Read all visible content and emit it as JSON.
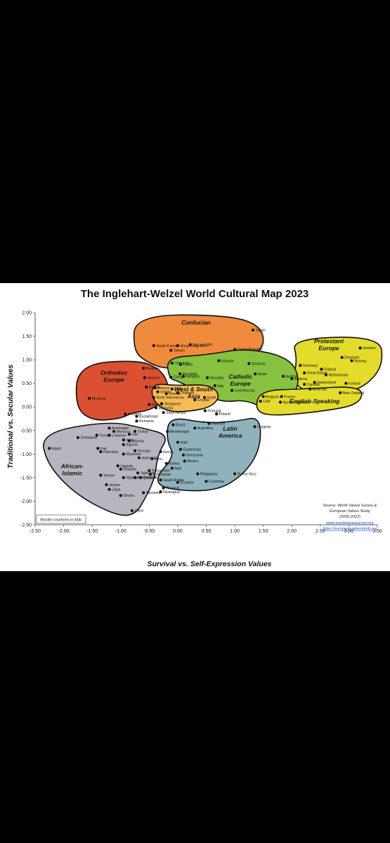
{
  "chart_data": {
    "type": "scatter",
    "title": "The Inglehart-Welzel World Cultural Map 2023",
    "xlabel": "Survival vs. Self-Expression Values",
    "ylabel": "Traditional vs. Secular Values",
    "xlim": [
      -2.5,
      3.5
    ],
    "ylim": [
      -2.5,
      2.0
    ],
    "x_ticks": [
      "-2.50",
      "-2.00",
      "-1.50",
      "-1.00",
      "-0.50",
      "0.00",
      "0.50",
      "1.00",
      "1.50",
      "2.00",
      "2.50",
      "3.00",
      "3.50"
    ],
    "y_ticks": [
      "2.00",
      "1.50",
      "1.00",
      "0.50",
      "0.00",
      "-0.50",
      "-1.00",
      "-1.50",
      "-2.00",
      "-2.50"
    ],
    "grid": false,
    "regions": [
      {
        "name": "Confucian",
        "color": "#F08A3C"
      },
      {
        "name": "Protestant Europe",
        "color": "#E3DC2A"
      },
      {
        "name": "Orthodox Europe",
        "color": "#DA5031"
      },
      {
        "name": "Catholic Europe",
        "color": "#86C13F"
      },
      {
        "name": "West & South Asia",
        "color": "#F6BC52"
      },
      {
        "name": "English-Speaking",
        "color": "#E3DC2A"
      },
      {
        "name": "Latin America",
        "color": "#8FB2BD"
      },
      {
        "name": "African-Islamic",
        "color": "#B9B5C0"
      }
    ],
    "points": [
      {
        "label": "Japan",
        "x": 1.32,
        "y": 1.63
      },
      {
        "label": "South Korea",
        "x": -0.42,
        "y": 1.3
      },
      {
        "label": "Hong Kong SAR",
        "x": 0.0,
        "y": 1.3
      },
      {
        "label": "Macao SAR",
        "x": 0.22,
        "y": 1.32
      },
      {
        "label": "Taiwan",
        "x": -0.12,
        "y": 1.2
      },
      {
        "label": "Czech Republic",
        "x": 1.0,
        "y": 1.22
      },
      {
        "label": "Lithuania",
        "x": -0.1,
        "y": 0.93
      },
      {
        "label": "Latvia",
        "x": 0.05,
        "y": 0.9
      },
      {
        "label": "Estonia",
        "x": 0.72,
        "y": 0.98
      },
      {
        "label": "Slovenia",
        "x": 1.25,
        "y": 0.92
      },
      {
        "label": "Mongolia",
        "x": 0.04,
        "y": 0.7
      },
      {
        "label": "China",
        "x": -0.12,
        "y": 0.63
      },
      {
        "label": "Hungary",
        "x": 0.1,
        "y": 0.65
      },
      {
        "label": "Slovakia",
        "x": 0.52,
        "y": 0.62
      },
      {
        "label": "Spain",
        "x": 1.36,
        "y": 0.7
      },
      {
        "label": "Bulgaria",
        "x": -0.6,
        "y": 0.82
      },
      {
        "label": "Ukraine",
        "x": -0.58,
        "y": 0.62
      },
      {
        "label": "Russia",
        "x": -0.55,
        "y": 0.42
      },
      {
        "label": "Belarus",
        "x": -0.4,
        "y": 0.4
      },
      {
        "label": "Serbia",
        "x": -0.35,
        "y": 0.32
      },
      {
        "label": "Greece",
        "x": -0.2,
        "y": 0.28
      },
      {
        "label": "North Macedonia",
        "x": -0.42,
        "y": 0.2
      },
      {
        "label": "Moldova",
        "x": -1.55,
        "y": 0.18
      },
      {
        "label": "Armenia",
        "x": -0.92,
        "y": -0.15
      },
      {
        "label": "Bosnia",
        "x": -0.5,
        "y": 0.05
      },
      {
        "label": "Singapore",
        "x": -0.28,
        "y": 0.07
      },
      {
        "label": "Malaysia",
        "x": -0.38,
        "y": -0.02
      },
      {
        "label": "Thailand",
        "x": 0.0,
        "y": 0.3
      },
      {
        "label": "Chile",
        "x": -0.1,
        "y": 0.38
      },
      {
        "label": "Israel",
        "x": 0.47,
        "y": 0.2
      },
      {
        "label": "Croatia",
        "x": 0.3,
        "y": 0.15
      },
      {
        "label": "Italy",
        "x": 0.65,
        "y": 0.45
      },
      {
        "label": "Luxembourg",
        "x": 0.95,
        "y": 0.35
      },
      {
        "label": "Belgium",
        "x": 1.5,
        "y": 0.22
      },
      {
        "label": "France",
        "x": 1.82,
        "y": 0.22
      },
      {
        "label": "Portugal",
        "x": 0.48,
        "y": -0.08
      },
      {
        "label": "Poland",
        "x": 0.68,
        "y": -0.15
      },
      {
        "label": "South Africa",
        "x": -0.25,
        "y": -0.12
      },
      {
        "label": "Kazakhstan",
        "x": -0.72,
        "y": -0.2
      },
      {
        "label": "Romania",
        "x": -0.72,
        "y": -0.3
      },
      {
        "label": "Brazil",
        "x": -0.08,
        "y": -0.38
      },
      {
        "label": "Argentina",
        "x": 0.3,
        "y": -0.45
      },
      {
        "label": "Vietnam",
        "x": 0.55,
        "y": -0.35
      },
      {
        "label": "Uruguay",
        "x": 1.35,
        "y": -0.42
      },
      {
        "label": "Montenegro",
        "x": -0.18,
        "y": -0.52
      },
      {
        "label": "Azerbaijan",
        "x": -1.2,
        "y": -0.45
      },
      {
        "label": "Morocco",
        "x": -1.12,
        "y": -0.52
      },
      {
        "label": "Lebanon",
        "x": -1.2,
        "y": -0.6
      },
      {
        "label": "Turkey",
        "x": -0.75,
        "y": -0.52
      },
      {
        "label": "Iran",
        "x": -0.85,
        "y": -0.58
      },
      {
        "label": "Tunisia",
        "x": -1.42,
        "y": -0.6
      },
      {
        "label": "Zimbabwe",
        "x": -1.75,
        "y": -0.65
      },
      {
        "label": "India",
        "x": -0.95,
        "y": -0.7
      },
      {
        "label": "Albania",
        "x": -0.85,
        "y": -0.72
      },
      {
        "label": "Algeria",
        "x": -0.95,
        "y": -0.8
      },
      {
        "label": "Iraq",
        "x": -1.4,
        "y": -0.88
      },
      {
        "label": "Palestine",
        "x": -1.35,
        "y": -0.95
      },
      {
        "label": "Egypt",
        "x": -2.25,
        "y": -0.88
      },
      {
        "label": "Myanmar",
        "x": -0.95,
        "y": -1.0
      },
      {
        "label": "Georgia",
        "x": -0.75,
        "y": -0.93
      },
      {
        "label": "Haiti",
        "x": 0.0,
        "y": -0.75
      },
      {
        "label": "Guatemala",
        "x": 0.05,
        "y": -0.9
      },
      {
        "label": "Kenya",
        "x": -0.3,
        "y": -0.95
      },
      {
        "label": "Venezuela",
        "x": 0.1,
        "y": -1.02
      },
      {
        "label": "Peru",
        "x": -0.45,
        "y": -1.1
      },
      {
        "label": "Indonesia",
        "x": -0.68,
        "y": -1.08
      },
      {
        "label": "Mexico",
        "x": 0.12,
        "y": -1.15
      },
      {
        "label": "Bolivia",
        "x": -0.2,
        "y": -1.2
      },
      {
        "label": "Uganda",
        "x": -1.05,
        "y": -1.25
      },
      {
        "label": "Ethiopia",
        "x": -1.0,
        "y": -1.32
      },
      {
        "label": "Mali",
        "x": -0.1,
        "y": -1.3
      },
      {
        "label": "Kyrgyzstan",
        "x": -0.5,
        "y": -1.35
      },
      {
        "label": "Uzbekistan",
        "x": -0.48,
        "y": -1.43
      },
      {
        "label": "Tajikistan",
        "x": -0.7,
        "y": -1.4
      },
      {
        "label": "Bangladesh",
        "x": -0.75,
        "y": -1.5
      },
      {
        "label": "Philippines",
        "x": 0.35,
        "y": -1.42
      },
      {
        "label": "Puerto Rico",
        "x": 1.0,
        "y": -1.42
      },
      {
        "label": "Yemen",
        "x": -1.35,
        "y": -1.45
      },
      {
        "label": "Nigeria",
        "x": -0.95,
        "y": -1.5
      },
      {
        "label": "Pakistan",
        "x": -0.65,
        "y": -1.5
      },
      {
        "label": "Saudi Arabia",
        "x": -0.3,
        "y": -1.55
      },
      {
        "label": "Ecuador",
        "x": 0.0,
        "y": -1.6
      },
      {
        "label": "Colombia",
        "x": 0.5,
        "y": -1.58
      },
      {
        "label": "Jordan",
        "x": -1.25,
        "y": -1.65
      },
      {
        "label": "Libya",
        "x": -1.2,
        "y": -1.75
      },
      {
        "label": "Ghana",
        "x": -1.0,
        "y": -1.88
      },
      {
        "label": "Tanzania",
        "x": -0.6,
        "y": -1.82
      },
      {
        "label": "Trinidad",
        "x": -0.25,
        "y": -1.72
      },
      {
        "label": "Nicaragua",
        "x": -0.3,
        "y": -1.8
      },
      {
        "label": "Qatar",
        "x": -0.8,
        "y": -2.2
      },
      {
        "label": "Germany",
        "x": 2.15,
        "y": 0.88
      },
      {
        "label": "Denmark",
        "x": 2.88,
        "y": 1.05
      },
      {
        "label": "Sweden",
        "x": 3.2,
        "y": 1.25
      },
      {
        "label": "Norway",
        "x": 3.05,
        "y": 0.98
      },
      {
        "label": "Finland",
        "x": 2.52,
        "y": 0.8
      },
      {
        "label": "Netherlands",
        "x": 2.6,
        "y": 0.68
      },
      {
        "label": "Switzerland",
        "x": 2.4,
        "y": 0.52
      },
      {
        "label": "Iceland",
        "x": 2.95,
        "y": 0.5
      },
      {
        "label": "Andorra",
        "x": 2.0,
        "y": 0.6
      },
      {
        "label": "Austria",
        "x": 1.85,
        "y": 0.65
      },
      {
        "label": "Great Britain",
        "x": 2.22,
        "y": 0.72
      },
      {
        "label": "Canada",
        "x": 2.22,
        "y": 0.48
      },
      {
        "label": "Australia",
        "x": 2.32,
        "y": 0.38
      },
      {
        "label": "New Zealand",
        "x": 2.85,
        "y": 0.3
      },
      {
        "label": "USA",
        "x": 1.45,
        "y": 0.12
      },
      {
        "label": "Northern Ireland",
        "x": 1.8,
        "y": 0.1
      }
    ],
    "source": [
      "Source: World Values Survey &",
      "European Values Study",
      "(2005-2022)"
    ],
    "links": [
      "www.worldvaluessurvey.org",
      "https://europeanvaluesstudy.eu/"
    ],
    "note": "Muslim countries in italic"
  }
}
